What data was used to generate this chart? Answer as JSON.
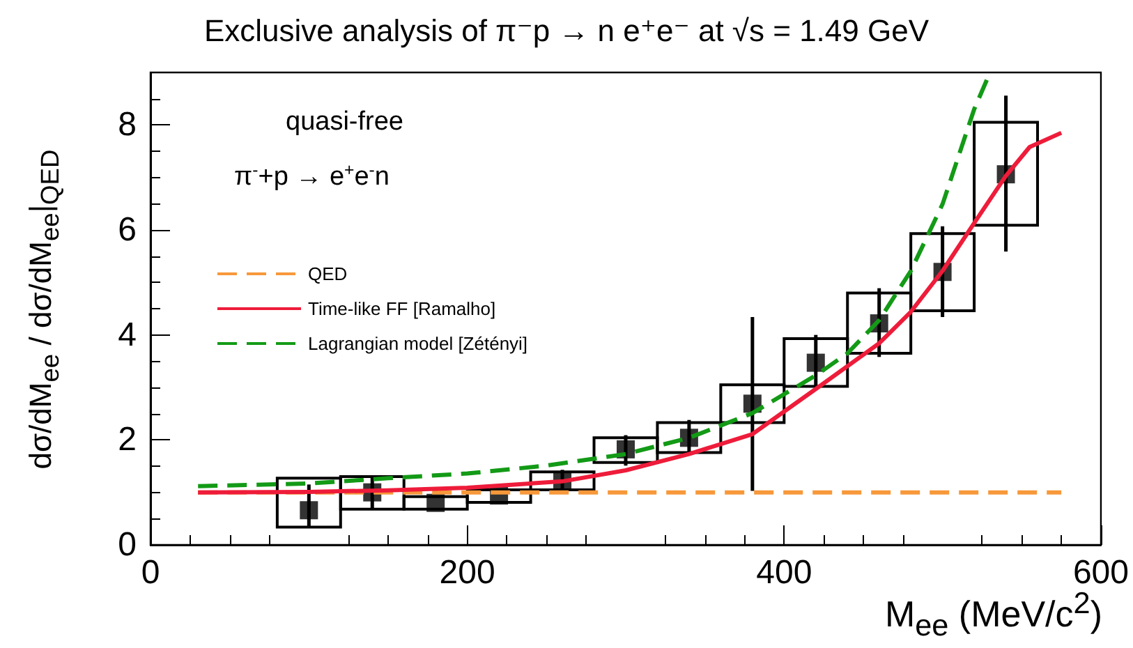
{
  "chart_data": {
    "type": "line",
    "title": "Exclusive analysis of π⁻p → n e⁺e⁻ at √s = 1.49 GeV",
    "xlabel": "M$_{ee}$ (MeV/c$^{2}$)",
    "ylabel": "dσ/dM$_{ee}$ / dσ/dM$_{ee}$|$_{QED}$",
    "annotations": [
      "quasi-free",
      "π$^{-}$+p → e$^{+}$e$^{-}$n"
    ],
    "xlim": [
      0,
      600
    ],
    "xticks": [
      0,
      200,
      400,
      600
    ],
    "ylim": [
      0,
      9
    ],
    "yticks": [
      0,
      2,
      4,
      6,
      8
    ],
    "grid": false,
    "legend": "left",
    "series": [
      {
        "type": "bar",
        "color": "#000000",
        "x": [
          100,
          140,
          180,
          220,
          260,
          300,
          340,
          380,
          420,
          460,
          500,
          540
        ],
        "base": [
          0.34,
          0.68,
          0.68,
          0.81,
          1.05,
          1.57,
          1.76,
          2.33,
          3.02,
          3.65,
          4.46,
          6.09
        ],
        "values": [
          0.93,
          0.62,
          0.24,
          0.24,
          0.34,
          0.47,
          0.57,
          0.72,
          0.91,
          1.15,
          1.47,
          1.96
        ]
      },
      {
        "type": "scatter",
        "color": "#000000",
        "marker": "square",
        "x": [
          100,
          140,
          180,
          220,
          260,
          300,
          340,
          380,
          420,
          460,
          500,
          540
        ],
        "values": [
          0.66,
          1.0,
          0.8,
          0.94,
          1.22,
          1.82,
          2.04,
          2.69,
          3.47,
          4.22,
          5.2,
          7.06
        ],
        "errors": [
          [
            0.34,
            1.15
          ],
          [
            0.7,
            1.32
          ],
          null,
          null,
          [
            1.03,
            1.43
          ],
          [
            1.51,
            2.09
          ],
          [
            1.73,
            2.38
          ],
          [
            1.03,
            4.34
          ],
          [
            3.0,
            4.0
          ],
          [
            3.58,
            4.89
          ],
          [
            4.34,
            6.07
          ],
          [
            5.59,
            8.56
          ]
        ]
      },
      {
        "name": "QED",
        "color": "#f7983a",
        "marker": "none",
        "line_style": "dashed",
        "x": [
          30,
          575
        ],
        "values": [
          1,
          1
        ]
      },
      {
        "name": "Time-like FF [Ramalho]",
        "color": "#ee1c3a",
        "marker": "none",
        "line_style": "solid",
        "x": [
          30,
          100,
          150,
          200,
          260,
          300,
          340,
          380,
          420,
          460,
          480,
          500,
          520,
          540,
          555,
          575
        ],
        "values": [
          1.0,
          1.01,
          1.04,
          1.09,
          1.21,
          1.42,
          1.73,
          2.11,
          2.97,
          3.84,
          4.44,
          5.22,
          6.13,
          7.03,
          7.58,
          7.85
        ]
      },
      {
        "name": "Lagrangian model [Zétényi]",
        "color": "#139a16",
        "marker": "none",
        "line_style": "dashed",
        "x": [
          30,
          100,
          150,
          200,
          250,
          300,
          340,
          380,
          420,
          440,
          460,
          480,
          500,
          520,
          530
        ],
        "values": [
          1.12,
          1.17,
          1.27,
          1.36,
          1.51,
          1.73,
          2.04,
          2.51,
          3.23,
          3.65,
          4.28,
          5.22,
          6.49,
          8.3,
          9.0
        ]
      }
    ]
  }
}
